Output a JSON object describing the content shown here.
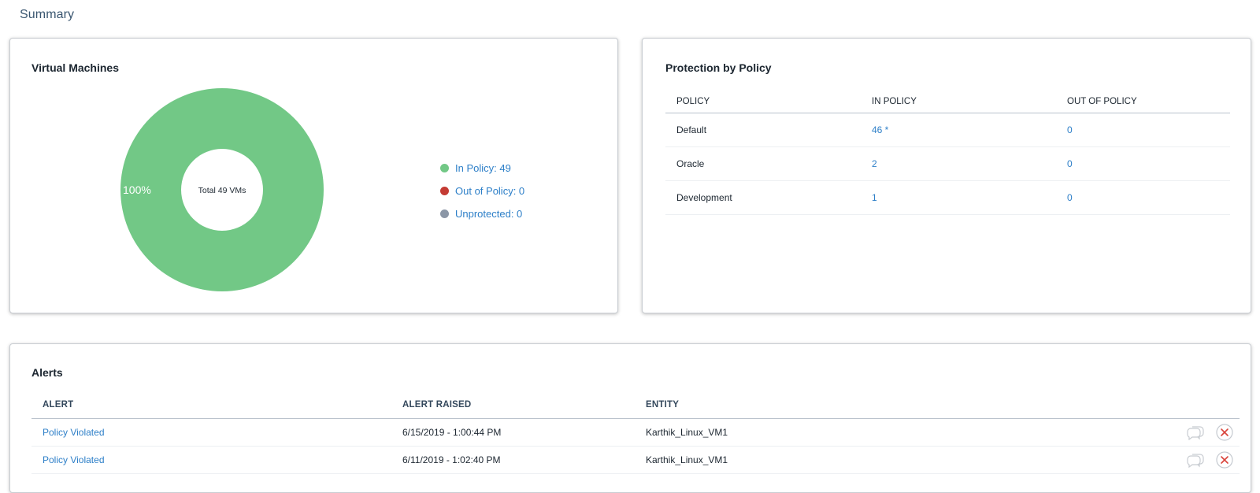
{
  "page": {
    "title": "Summary"
  },
  "virtual_machines": {
    "title": "Virtual Machines",
    "center_label": "Total 49 VMs",
    "slice_label": "100%",
    "legend": [
      {
        "label": "In Policy: 49",
        "color": "#72c886"
      },
      {
        "label": "Out of Policy: 0",
        "color": "#c43b34"
      },
      {
        "label": "Unprotected: 0",
        "color": "#8b96a6"
      }
    ]
  },
  "chart_data": {
    "type": "pie",
    "categories": [
      "In Policy",
      "Out of Policy",
      "Unprotected"
    ],
    "values": [
      49,
      0,
      0
    ],
    "title": "",
    "center_text": "Total 49 VMs",
    "colors": [
      "#72c886",
      "#c43b34",
      "#8b96a6"
    ],
    "legend_position": "right"
  },
  "protection_by_policy": {
    "title": "Protection by Policy",
    "columns": [
      "POLICY",
      "IN POLICY",
      "OUT OF POLICY"
    ],
    "rows": [
      {
        "policy": "Default",
        "in_policy": "46 *",
        "out_of_policy": "0"
      },
      {
        "policy": "Oracle",
        "in_policy": "2",
        "out_of_policy": "0"
      },
      {
        "policy": "Development",
        "in_policy": "1",
        "out_of_policy": "0"
      }
    ]
  },
  "alerts": {
    "title": "Alerts",
    "columns": [
      "ALERT",
      "ALERT RAISED",
      "ENTITY"
    ],
    "rows": [
      {
        "alert": "Policy Violated",
        "raised": "6/15/2019 - 1:00:44 PM",
        "entity": "Karthik_Linux_VM1"
      },
      {
        "alert": "Policy Violated",
        "raised": "6/11/2019 - 1:02:40 PM",
        "entity": "Karthik_Linux_VM1"
      }
    ],
    "icons": {
      "comment": "comment-icon",
      "dismiss": "close-icon",
      "dismiss_color": "#d9433a"
    }
  }
}
